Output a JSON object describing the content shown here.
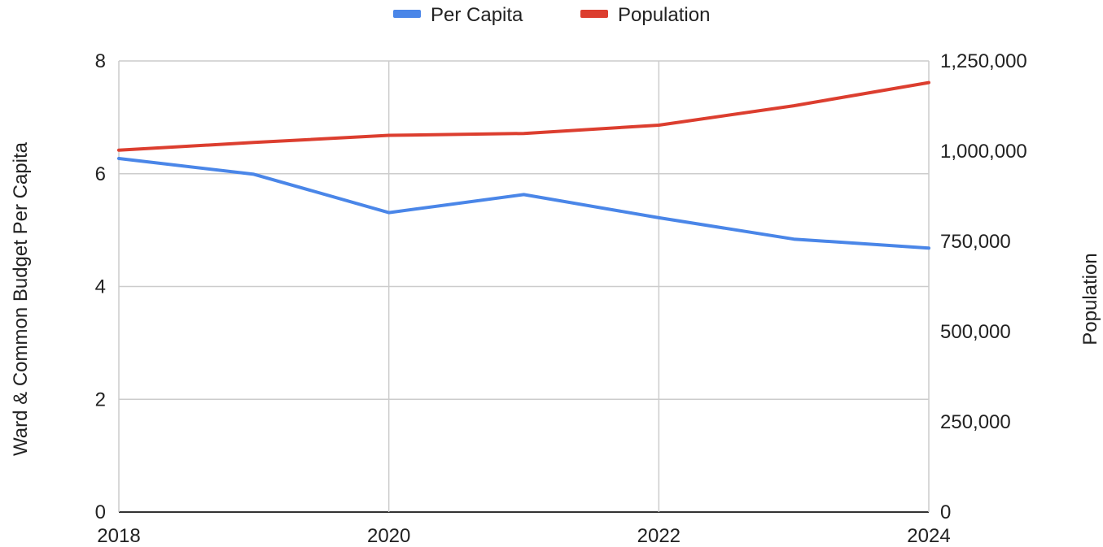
{
  "chart_data": {
    "type": "line",
    "x": [
      2018,
      2019,
      2020,
      2021,
      2022,
      2023,
      2024
    ],
    "x_tick_labels": [
      "2018",
      "2020",
      "2022",
      "2024"
    ],
    "x_ticks": [
      2018,
      2020,
      2022,
      2024
    ],
    "xlim": [
      2018,
      2024
    ],
    "xlabel": "",
    "ylabel_left": "Ward & Common Budget Per Capita",
    "ylabel_right": "Population",
    "ylim_left": [
      0,
      8
    ],
    "ylim_right": [
      0,
      1250000
    ],
    "y_ticks_left": [
      0,
      2,
      4,
      6,
      8
    ],
    "y_tick_labels_left": [
      "0",
      "2",
      "4",
      "6",
      "8"
    ],
    "y_ticks_right": [
      0,
      250000,
      500000,
      750000,
      1000000,
      1250000
    ],
    "y_tick_labels_right": [
      "0",
      "250,000",
      "500,000",
      "750,000",
      "1,000,000",
      "1,250,000"
    ],
    "grid": true,
    "legend_position": "top-center",
    "series": [
      {
        "name": "Per Capita",
        "axis": "left",
        "color": "#4a86e8",
        "values": [
          6.27,
          5.99,
          5.31,
          5.63,
          5.22,
          4.84,
          4.68
        ]
      },
      {
        "name": "Population",
        "axis": "right",
        "color": "#dc3e2f",
        "values": [
          1003000,
          1024000,
          1044000,
          1049000,
          1072000,
          1126000,
          1190000
        ]
      }
    ]
  }
}
